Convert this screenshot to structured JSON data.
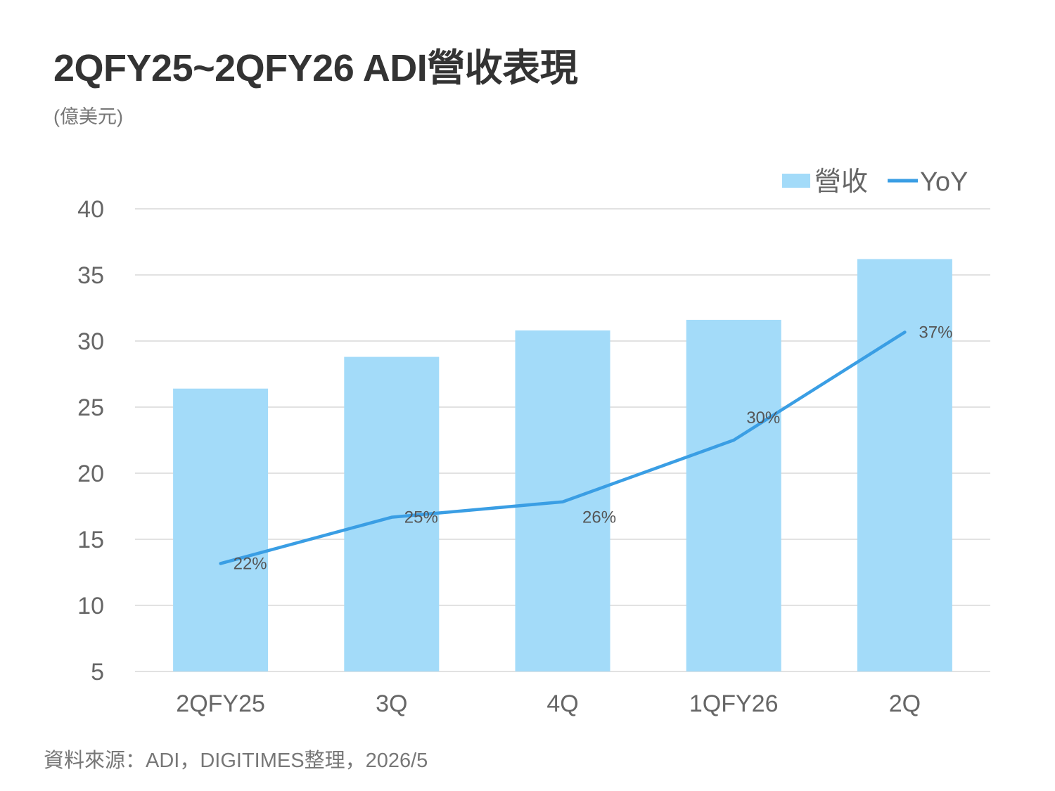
{
  "header": {
    "title": "2QFY25~2QFY26 ADI營收表現",
    "unit": "(億美元)"
  },
  "footer": {
    "source": "資料來源：ADI，DIGITIMES整理，2026/5"
  },
  "colors": {
    "bar": "#a3dbf9",
    "line": "#3a9ee4",
    "grid": "#d9d9d9",
    "text": "#666666"
  },
  "chart_data": {
    "type": "bar",
    "categories": [
      "2QFY25",
      "3Q",
      "4Q",
      "1QFY26",
      "2Q"
    ],
    "series": [
      {
        "name": "營收",
        "type": "bar",
        "values": [
          26.4,
          28.8,
          30.8,
          31.6,
          36.2
        ]
      },
      {
        "name": "YoY",
        "type": "line",
        "values": [
          22,
          25,
          26,
          30,
          37
        ],
        "labels": [
          "22%",
          "25%",
          "26%",
          "30%",
          "37%"
        ]
      }
    ],
    "ylim": [
      5,
      40
    ],
    "yticks": [
      5,
      10,
      15,
      20,
      25,
      30,
      35,
      40
    ],
    "grid": true,
    "legend_position": "top-right"
  }
}
